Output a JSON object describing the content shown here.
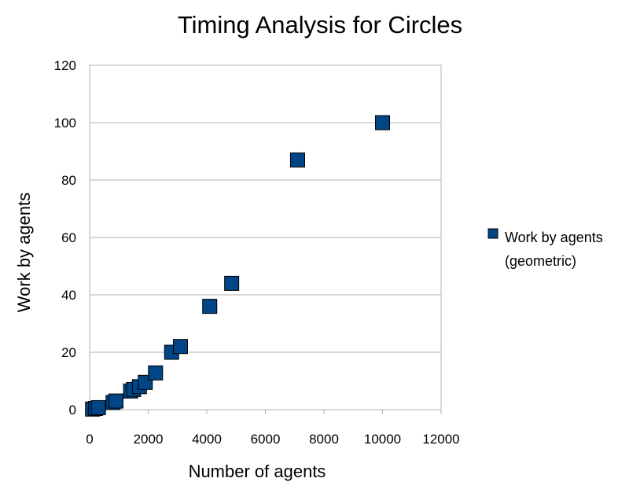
{
  "chart_data": {
    "type": "scatter",
    "title": "Timing Analysis for Circles",
    "xlabel": "Number of agents",
    "ylabel": "Work by agents",
    "xlim": [
      0,
      12000
    ],
    "ylim": [
      0,
      120
    ],
    "xticks": [
      0,
      2000,
      4000,
      6000,
      8000,
      10000,
      12000
    ],
    "yticks": [
      0,
      20,
      40,
      60,
      80,
      100,
      120
    ],
    "grid": "horizontal",
    "legend_position": "right",
    "series": [
      {
        "name": "Work by agents (geometric)",
        "legend_lines": [
          "Work by agents",
          "(geometric)"
        ],
        "color": "#004586",
        "marker": "square",
        "points": [
          {
            "x": 100,
            "y": 0.2
          },
          {
            "x": 200,
            "y": 0.4
          },
          {
            "x": 300,
            "y": 0.7
          },
          {
            "x": 800,
            "y": 2.5
          },
          {
            "x": 900,
            "y": 3.0
          },
          {
            "x": 1400,
            "y": 6.5
          },
          {
            "x": 1500,
            "y": 7.0
          },
          {
            "x": 1700,
            "y": 8.0
          },
          {
            "x": 1900,
            "y": 9.5
          },
          {
            "x": 2250,
            "y": 12.8
          },
          {
            "x": 2800,
            "y": 20.0
          },
          {
            "x": 3100,
            "y": 22.0
          },
          {
            "x": 4100,
            "y": 36.0
          },
          {
            "x": 4850,
            "y": 44.0
          },
          {
            "x": 7100,
            "y": 87.0
          },
          {
            "x": 10000,
            "y": 100.0
          }
        ]
      }
    ]
  }
}
